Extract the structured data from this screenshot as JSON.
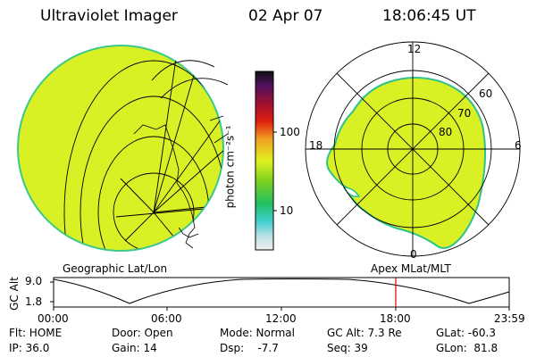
{
  "header": {
    "instrument": "Ultraviolet Imager",
    "date": "02 Apr 07",
    "time": "18:06:45 UT"
  },
  "colorbar": {
    "label": "photon cm⁻²s⁻¹",
    "ticks": [
      "100",
      "10"
    ]
  },
  "polar_plot": {
    "mlt_labels": [
      "12",
      "18",
      "6",
      "0"
    ],
    "lat_labels": [
      "60",
      "70",
      "80"
    ]
  },
  "plot_titles": {
    "geographic": "Geographic Lat/Lon",
    "apex": "Apex  MLat/MLT"
  },
  "orbit": {
    "ylabel": "GC Alt",
    "yticks": [
      "9.0",
      "1.8"
    ],
    "xticks": [
      "00:00",
      "06:00",
      "12:00",
      "18:00",
      "23:59"
    ]
  },
  "info": {
    "row1": [
      "Flt: HOME",
      "Door: Open",
      "Mode: Normal",
      "GC Alt: 7.3 Re",
      "GLat: -60.3"
    ],
    "row2": [
      "IP: 36.0",
      "Gain: 14",
      "Dsp:    -7.7",
      "Seq: 39",
      "GLon:  81.8"
    ]
  },
  "colors": {
    "aurora": "#d9f025",
    "aurora_edge": "#2ec28a",
    "cursor": "#dd0000"
  }
}
